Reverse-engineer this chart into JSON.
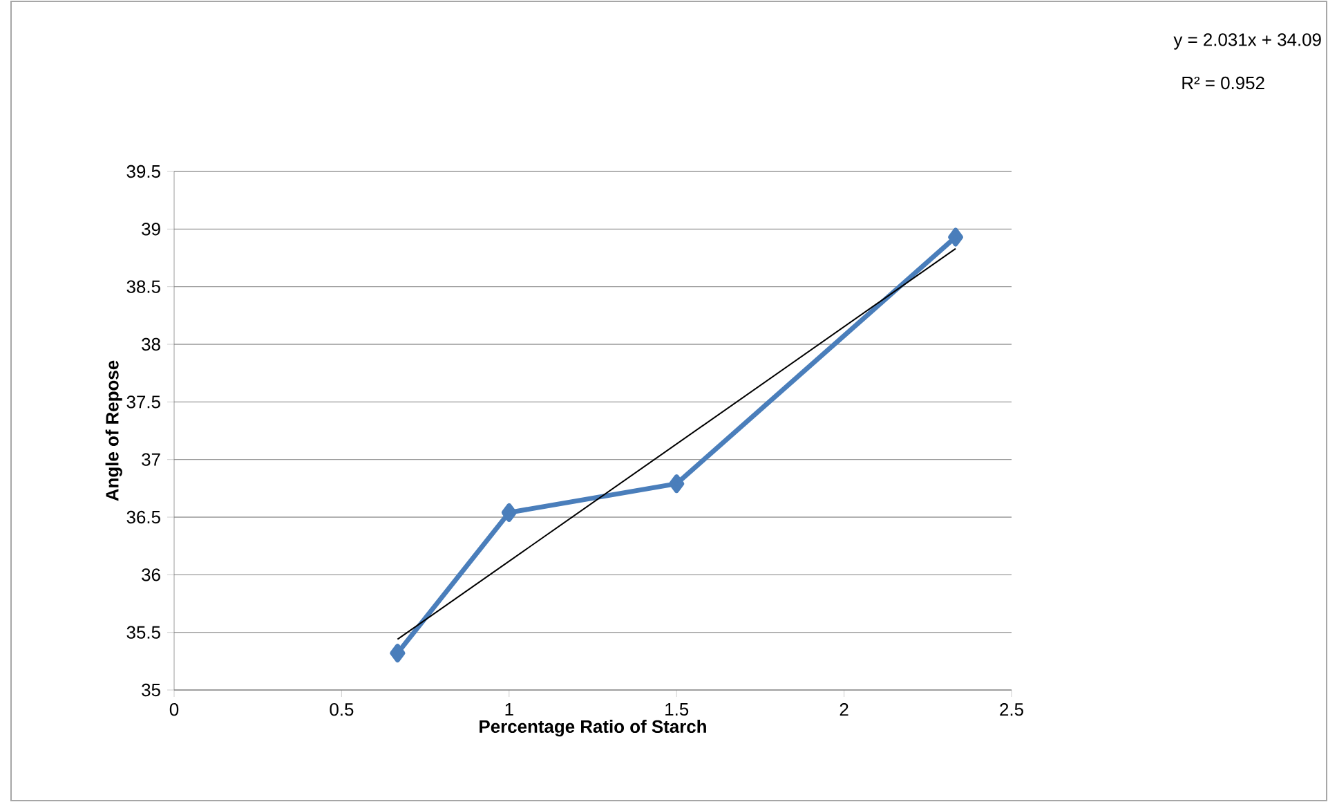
{
  "chart_data": {
    "type": "line",
    "xlabel": "Percentage Ratio of Starch",
    "ylabel": "Angle of Repose",
    "series": [
      {
        "color": "#4a7ebb",
        "x": [
          0.667,
          1,
          1.5,
          2.333
        ],
        "values": [
          35.32,
          36.54,
          36.79,
          38.93
        ],
        "marker": "diamond"
      },
      {
        "color": "#000000",
        "x": [
          0.667,
          2.333
        ],
        "values": [
          35.44,
          38.83
        ],
        "marker": "none"
      }
    ],
    "xlim": [
      0,
      2.5
    ],
    "xticks": [
      0,
      0.5,
      1,
      1.5,
      2,
      2.5
    ],
    "ylim": [
      35,
      39.5
    ],
    "yticks": [
      35,
      35.5,
      36,
      36.5,
      37,
      37.5,
      38,
      38.5,
      39,
      39.5
    ],
    "grid": "y",
    "annotations": [
      "y = 2.031x + 34.09",
      "R² = 0.952"
    ]
  }
}
